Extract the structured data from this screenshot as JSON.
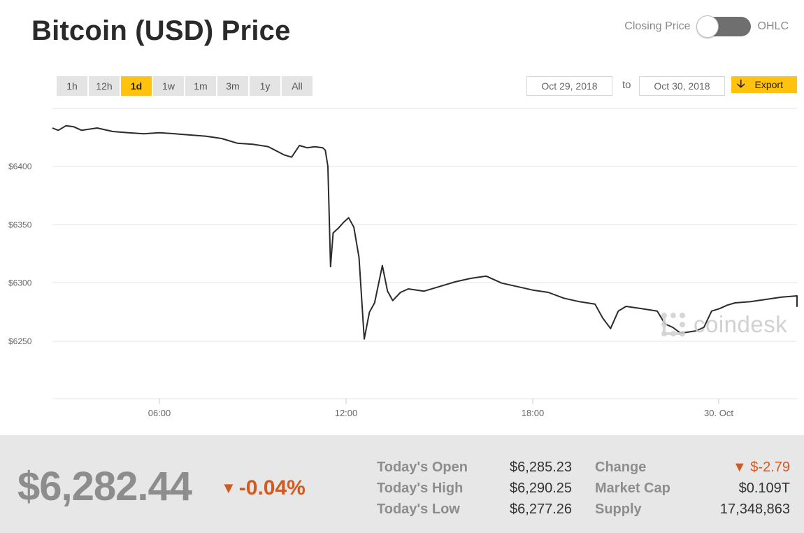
{
  "title": "Bitcoin (USD) Price",
  "mode_toggle": {
    "left_label": "Closing Price",
    "right_label": "OHLC"
  },
  "ranges": [
    "1h",
    "12h",
    "1d",
    "1w",
    "1m",
    "3m",
    "1y",
    "All"
  ],
  "active_range": "1d",
  "date_range": {
    "from": "Oct 29, 2018",
    "to_label": "to",
    "to": "Oct 30, 2018"
  },
  "export_label": "Export",
  "watermark": "coindesk",
  "colors": {
    "accent": "#ffc20e",
    "negative": "#d05a21",
    "line": "#2b2b2b",
    "grid": "#e6e6e6"
  },
  "chart_data": {
    "type": "line",
    "title": "",
    "xlabel": "",
    "ylabel": "",
    "x_ticks": [
      "06:00",
      "12:00",
      "18:00",
      "30. Oct"
    ],
    "y_ticks": [
      "$6250",
      "$6300",
      "$6350",
      "$6400"
    ],
    "ylim": [
      6225,
      6455
    ],
    "grid": true,
    "series": [
      {
        "points": [
          [
            "02:30",
            6433
          ],
          [
            "02:45",
            6431
          ],
          [
            "03:00",
            6435
          ],
          [
            "03:15",
            6434
          ],
          [
            "03:30",
            6431
          ],
          [
            "04:00",
            6433
          ],
          [
            "04:30",
            6430
          ],
          [
            "05:00",
            6429
          ],
          [
            "05:30",
            6428
          ],
          [
            "06:00",
            6429
          ],
          [
            "06:30",
            6428
          ],
          [
            "07:00",
            6427
          ],
          [
            "07:30",
            6426
          ],
          [
            "08:00",
            6424
          ],
          [
            "08:30",
            6420
          ],
          [
            "09:00",
            6419
          ],
          [
            "09:30",
            6417
          ],
          [
            "10:00",
            6410
          ],
          [
            "10:15",
            6408
          ],
          [
            "10:30",
            6418
          ],
          [
            "10:45",
            6416
          ],
          [
            "11:00",
            6417
          ],
          [
            "11:15",
            6416
          ],
          [
            "11:20",
            6414
          ],
          [
            "11:25",
            6400
          ],
          [
            "11:30",
            6314
          ],
          [
            "11:35",
            6343
          ],
          [
            "11:45",
            6347
          ],
          [
            "11:55",
            6352
          ],
          [
            "12:05",
            6356
          ],
          [
            "12:15",
            6348
          ],
          [
            "12:25",
            6322
          ],
          [
            "12:35",
            6252
          ],
          [
            "12:45",
            6275
          ],
          [
            "12:55",
            6283
          ],
          [
            "13:10",
            6315
          ],
          [
            "13:20",
            6293
          ],
          [
            "13:30",
            6285
          ],
          [
            "13:45",
            6292
          ],
          [
            "14:00",
            6295
          ],
          [
            "14:30",
            6293
          ],
          [
            "15:00",
            6297
          ],
          [
            "15:30",
            6301
          ],
          [
            "16:00",
            6304
          ],
          [
            "16:30",
            6306
          ],
          [
            "17:00",
            6300
          ],
          [
            "17:30",
            6297
          ],
          [
            "18:00",
            6294
          ],
          [
            "18:30",
            6292
          ],
          [
            "19:00",
            6287
          ],
          [
            "19:30",
            6284
          ],
          [
            "20:00",
            6282
          ],
          [
            "20:15",
            6270
          ],
          [
            "20:30",
            6261
          ],
          [
            "20:45",
            6276
          ],
          [
            "21:00",
            6280
          ],
          [
            "21:30",
            6278
          ],
          [
            "22:00",
            6276
          ],
          [
            "22:15",
            6265
          ],
          [
            "22:30",
            6262
          ],
          [
            "22:45",
            6257
          ],
          [
            "23:00",
            6258
          ],
          [
            "23:15",
            6259
          ],
          [
            "23:30",
            6262
          ],
          [
            "23:45",
            6276
          ],
          [
            "00:00",
            6278
          ],
          [
            "00:15",
            6281
          ],
          [
            "00:30",
            6283
          ],
          [
            "01:00",
            6284
          ],
          [
            "01:30",
            6286
          ],
          [
            "02:00",
            6288
          ],
          [
            "02:30",
            6289
          ],
          [
            "02:45",
            6289
          ],
          [
            "03:00",
            6280
          ],
          [
            "03:15",
            6284
          ],
          [
            "03:30",
            6282
          ]
        ]
      }
    ]
  },
  "stats": {
    "price": "$6,282.44",
    "change_pct": "-0.04%",
    "rows": [
      {
        "label": "Today's Open",
        "value": "$6,285.23",
        "label2": "Change",
        "value2": "$-2.79"
      },
      {
        "label": "Today's High",
        "value": "$6,290.25",
        "label2": "Market Cap",
        "value2": "$0.109T"
      },
      {
        "label": "Today's Low",
        "value": "$6,277.26",
        "label2": "Supply",
        "value2": "17,348,863"
      }
    ]
  }
}
